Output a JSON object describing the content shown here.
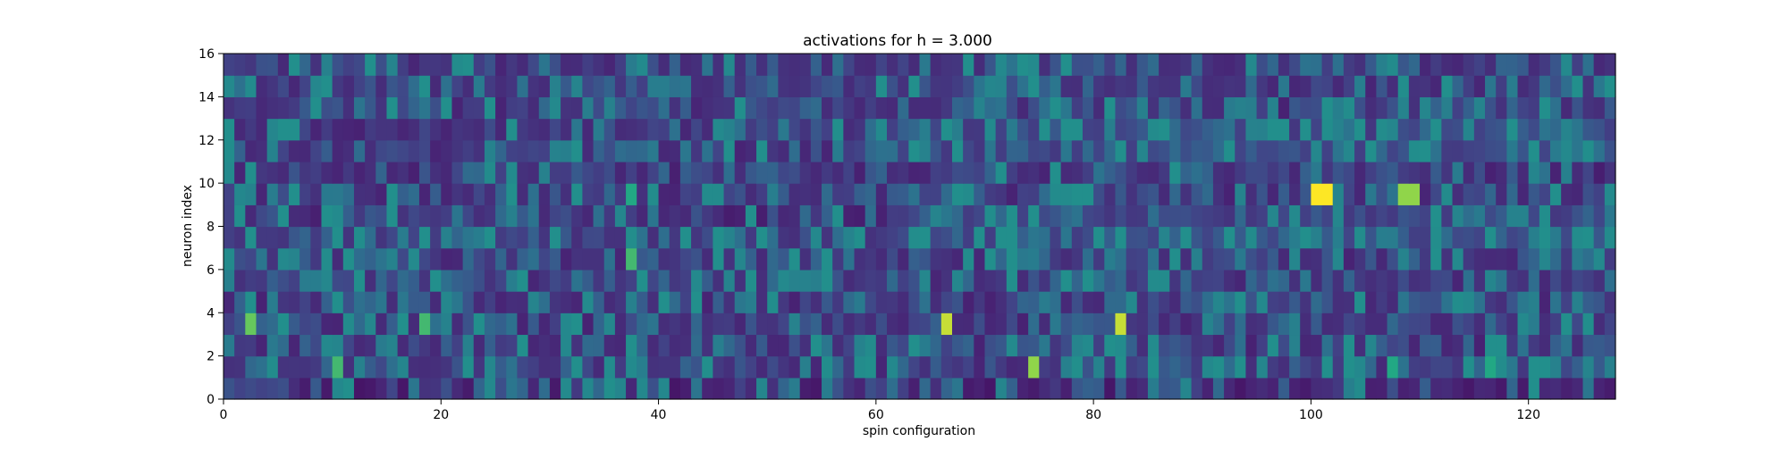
{
  "chart_data": {
    "type": "heatmap",
    "title": "activations for h = 3.000",
    "xlabel": "spin configuration",
    "ylabel": "neuron index",
    "xlim": [
      0,
      128
    ],
    "ylim": [
      0,
      16
    ],
    "xticks": [
      0,
      20,
      40,
      60,
      80,
      100,
      120
    ],
    "yticks": [
      0,
      2,
      4,
      6,
      8,
      10,
      12,
      14,
      16
    ],
    "n_cols": 128,
    "n_rows": 16,
    "colormap": "viridis",
    "value_range": [
      0,
      1
    ],
    "notes": "Each cell value is approximated; bright (yellow) highlights listed as sparse overrides.",
    "base_seed": 1337,
    "highlights": [
      {
        "col": 2,
        "row": 3,
        "value": 0.85
      },
      {
        "col": 10,
        "row": 1,
        "value": 0.8
      },
      {
        "col": 18,
        "row": 3,
        "value": 0.8
      },
      {
        "col": 37,
        "row": 6,
        "value": 0.8
      },
      {
        "col": 37,
        "row": 9,
        "value": 0.75
      },
      {
        "col": 66,
        "row": 3,
        "value": 0.95
      },
      {
        "col": 74,
        "row": 1,
        "value": 0.9
      },
      {
        "col": 82,
        "row": 3,
        "value": 0.95
      },
      {
        "col": 100,
        "row": 9,
        "value": 1.0
      },
      {
        "col": 101,
        "row": 9,
        "value": 1.0
      },
      {
        "col": 108,
        "row": 9,
        "value": 0.9
      },
      {
        "col": 109,
        "row": 9,
        "value": 0.9
      },
      {
        "col": 107,
        "row": 1,
        "value": 0.75
      },
      {
        "col": 116,
        "row": 1,
        "value": 0.75
      },
      {
        "col": 21,
        "row": 15,
        "value": 0.6
      },
      {
        "col": 44,
        "row": 9,
        "value": 0.6
      },
      {
        "col": 45,
        "row": 9,
        "value": 0.6
      },
      {
        "col": 68,
        "row": 9,
        "value": 0.6
      },
      {
        "col": 77,
        "row": 9,
        "value": 0.6
      },
      {
        "col": 85,
        "row": 5,
        "value": 0.6
      },
      {
        "col": 86,
        "row": 5,
        "value": 0.6
      },
      {
        "col": 85,
        "row": 12,
        "value": 0.6
      },
      {
        "col": 107,
        "row": 15,
        "value": 0.6
      },
      {
        "col": 112,
        "row": 9,
        "value": 0.6
      },
      {
        "col": 127,
        "row": 7,
        "value": 0.6
      },
      {
        "col": 94,
        "row": 7,
        "value": 0.6
      },
      {
        "col": 52,
        "row": 5,
        "value": 0.55
      },
      {
        "col": 53,
        "row": 5,
        "value": 0.55
      }
    ]
  }
}
